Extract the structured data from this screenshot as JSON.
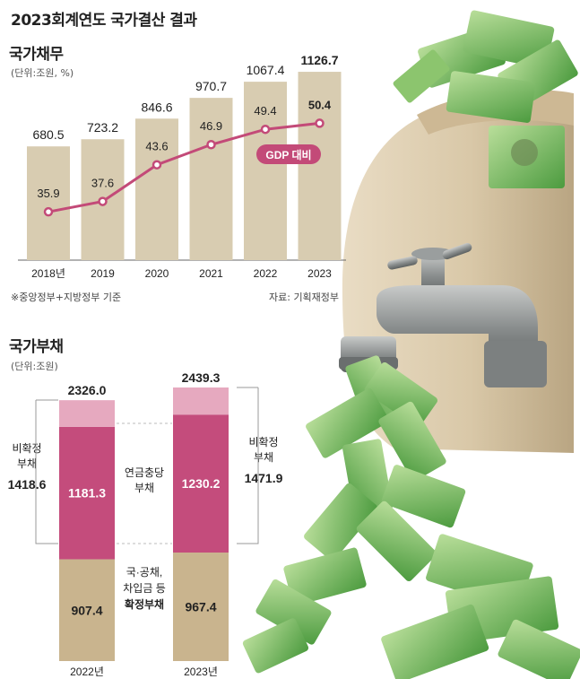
{
  "title": "2023회계연도 국가결산 결과",
  "colors": {
    "bar": "#d8ccb1",
    "line": "#c34a78",
    "pink": "#c44c7c",
    "pink_light": "#e6a9bf",
    "tan": "#c9b48e",
    "money": "#5aa64a"
  },
  "chart_data": [
    {
      "type": "bar",
      "title": "국가채무",
      "unit": "(단위:조원, %)",
      "categories": [
        "2018년",
        "2019",
        "2020",
        "2021",
        "2022",
        "2023"
      ],
      "series": [
        {
          "name": "국가채무",
          "values": [
            680.5,
            723.2,
            846.6,
            970.7,
            1067.4,
            1126.7
          ],
          "labels": [
            "680.5",
            "723.2",
            "846.6",
            "970.7",
            "1067.4",
            "1126.7"
          ]
        },
        {
          "name": "GDP 대비",
          "type": "line",
          "values": [
            35.9,
            37.6,
            43.6,
            46.9,
            49.4,
            50.4
          ],
          "labels": [
            "35.9",
            "37.6",
            "43.6",
            "46.9",
            "49.4",
            "50.4"
          ]
        }
      ],
      "ylim": [
        0,
        1170
      ],
      "line_ylim": [
        28,
        60
      ],
      "legend_label": "GDP 대비",
      "note": "※중앙정부+지방정부 기준",
      "source": "자료: 기획재정부"
    },
    {
      "type": "bar",
      "stacked": true,
      "title": "국가부채",
      "unit": "(단위:조원)",
      "categories": [
        "2022년",
        "2023년"
      ],
      "totals": [
        2326.0,
        2439.3
      ],
      "total_labels": [
        "2326.0",
        "2439.3"
      ],
      "series": [
        {
          "name": "국·공채, 차입금 등 확정부채",
          "values": [
            907.4,
            967.4
          ],
          "labels": [
            "907.4",
            "967.4"
          ]
        },
        {
          "name": "연금충당부채",
          "values": [
            1181.3,
            1230.2
          ],
          "labels": [
            "1181.3",
            "1230.2"
          ]
        },
        {
          "name": "기타 비확정부채",
          "values": [
            237.3,
            241.7
          ]
        }
      ],
      "ylim": [
        0,
        2439.3
      ],
      "middle_label_1": "연금충당",
      "middle_label_2": "부채",
      "bottom_label_1": "국·공채,",
      "bottom_label_2": "차입금 등",
      "bottom_label_3": "확정부채",
      "left_label_1": "비확정",
      "left_label_2": "부채",
      "left_value": "1418.6",
      "right_label_1": "비확정",
      "right_label_2": "부채",
      "right_value": "1471.9"
    }
  ]
}
